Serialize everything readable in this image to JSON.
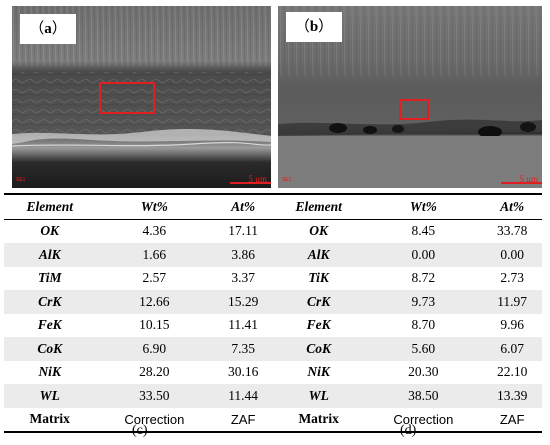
{
  "figures": {
    "a": {
      "label_open": "（",
      "label_letter": "a",
      "label_close": "）",
      "sem_tag": "SE1",
      "scale_text": "5 μm",
      "highlight_color": "#e02020"
    },
    "b": {
      "label_open": "（",
      "label_letter": "b",
      "label_close": "）",
      "sem_tag": "SE1",
      "scale_text": "5 μm",
      "highlight_color": "#e02020"
    }
  },
  "table": {
    "headers": [
      "Element",
      "Wt%",
      "At%",
      "Element",
      "Wt%",
      "At%"
    ],
    "rows": [
      {
        "el_c": "OK",
        "wt_c": "4.36",
        "at_c": "17.11",
        "el_d": "OK",
        "wt_d": "8.45",
        "at_d": "33.78",
        "shaded": false
      },
      {
        "el_c": "AlK",
        "wt_c": "1.66",
        "at_c": "3.86",
        "el_d": "AlK",
        "wt_d": "0.00",
        "at_d": "0.00",
        "shaded": true
      },
      {
        "el_c": "TiM",
        "wt_c": "2.57",
        "at_c": "3.37",
        "el_d": "TiK",
        "wt_d": "8.72",
        "at_d": "2.73",
        "shaded": false
      },
      {
        "el_c": "CrK",
        "wt_c": "12.66",
        "at_c": "15.29",
        "el_d": "CrK",
        "wt_d": "9.73",
        "at_d": "11.97",
        "shaded": true
      },
      {
        "el_c": "FeK",
        "wt_c": "10.15",
        "at_c": "11.41",
        "el_d": "FeK",
        "wt_d": "8.70",
        "at_d": "9.96",
        "shaded": false
      },
      {
        "el_c": "CoK",
        "wt_c": "6.90",
        "at_c": "7.35",
        "el_d": "CoK",
        "wt_d": "5.60",
        "at_d": "6.07",
        "shaded": true
      },
      {
        "el_c": "NiK",
        "wt_c": "28.20",
        "at_c": "30.16",
        "el_d": "NiK",
        "wt_d": "20.30",
        "at_d": "22.10",
        "shaded": false
      },
      {
        "el_c": "WL",
        "wt_c": "33.50",
        "at_c": "11.44",
        "el_d": "WL",
        "wt_d": "38.50",
        "at_d": "13.39",
        "shaded": true
      }
    ],
    "matrix": {
      "label_c": "Matrix",
      "wt_c": "Correction",
      "at_c": "ZAF",
      "label_d": "Matrix",
      "wt_d": "Correction",
      "at_d": "ZAF"
    }
  },
  "captions": {
    "c": "(c)",
    "d": "(d)"
  }
}
